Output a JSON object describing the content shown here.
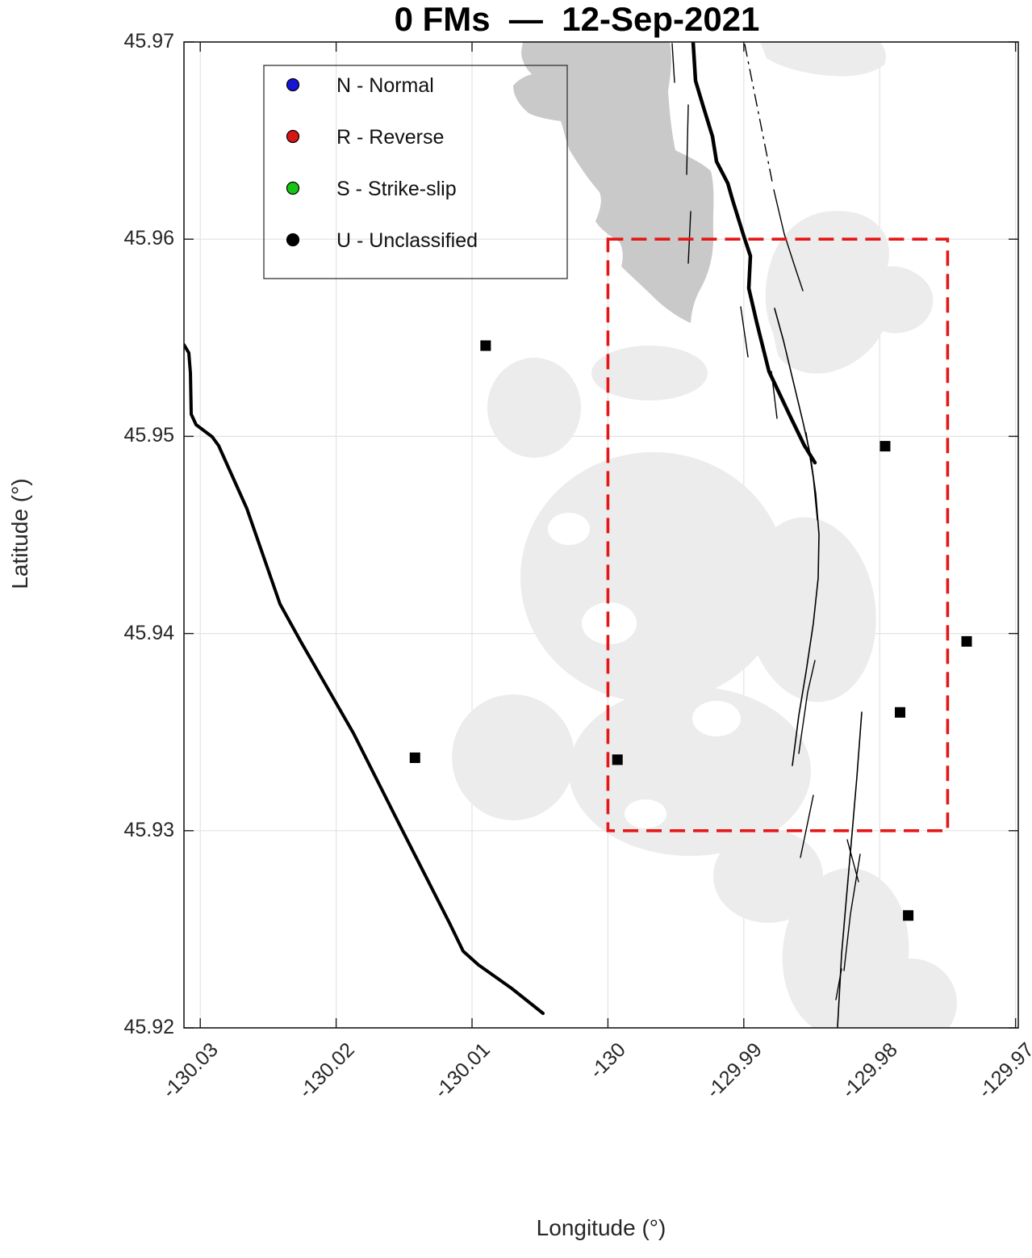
{
  "title": "0 FMs  —  12-Sep-2021",
  "axes": {
    "xlabel": "Longitude (°)",
    "ylabel": "Latitude (°)",
    "xlim": [
      -130.0312,
      -129.9698
    ],
    "ylim": [
      45.92,
      45.97
    ],
    "grid": true,
    "x_ticks": [
      {
        "value": -130.03,
        "label": "-130.03"
      },
      {
        "value": -130.02,
        "label": "-130.02"
      },
      {
        "value": -130.01,
        "label": "-130.01"
      },
      {
        "value": -130.0,
        "label": "-130"
      },
      {
        "value": -129.99,
        "label": "-129.99"
      },
      {
        "value": -129.98,
        "label": "-129.98"
      },
      {
        "value": -129.97,
        "label": "-129.97"
      }
    ],
    "y_ticks": [
      {
        "value": 45.97,
        "label": "45.97"
      },
      {
        "value": 45.96,
        "label": "45.96"
      },
      {
        "value": 45.95,
        "label": "45.95"
      },
      {
        "value": 45.94,
        "label": "45.94"
      },
      {
        "value": 45.93,
        "label": "45.93"
      },
      {
        "value": 45.92,
        "label": "45.92"
      }
    ]
  },
  "legend": {
    "position": "northwest",
    "items": [
      {
        "code": "N",
        "label": "N - Normal",
        "color": "#1515d6"
      },
      {
        "code": "R",
        "label": "R - Reverse",
        "color": "#d61515"
      },
      {
        "code": "S",
        "label": "S - Strike-slip",
        "color": "#15c415"
      },
      {
        "code": "U",
        "label": "U - Unclassified",
        "color": "#000000"
      }
    ]
  },
  "chart_data": {
    "type": "scatter",
    "title": "0 FMs  —  12-Sep-2021",
    "fm_count": 0,
    "date": "12-Sep-2021",
    "xlabel": "Longitude (°)",
    "ylabel": "Latitude (°)",
    "xlim": [
      -130.0312,
      -129.9698
    ],
    "ylim": [
      45.92,
      45.97
    ],
    "legend_position": "northwest",
    "grid": true,
    "series": [
      {
        "name": "U - Unclassified",
        "marker": "filled-square",
        "color": "#000000",
        "points": [
          {
            "lon": -130.009,
            "lat": 45.9546
          },
          {
            "lon": -129.9796,
            "lat": 45.9495
          },
          {
            "lon": -129.9736,
            "lat": 45.9396
          },
          {
            "lon": -129.9785,
            "lat": 45.936
          },
          {
            "lon": -130.0142,
            "lat": 45.9337
          },
          {
            "lon": -129.9993,
            "lat": 45.9336
          },
          {
            "lon": -129.9779,
            "lat": 45.9257
          }
        ]
      }
    ],
    "study_area_box": {
      "lon_min": -130.0,
      "lon_max": -129.975,
      "lat_min": 45.93,
      "lat_max": 45.96,
      "line_style": "dashed",
      "color": "#e51616",
      "line_width": 3.6
    }
  },
  "colors": {
    "background": "#ffffff",
    "plot_border": "#1a1a1a",
    "gridline": "#e3e3e3",
    "bathy_dark": "#c9c9c9",
    "bathy_light": "#ececec",
    "fault_line": "#000000",
    "study_box": "#e51616",
    "tick_text": "#262626"
  }
}
